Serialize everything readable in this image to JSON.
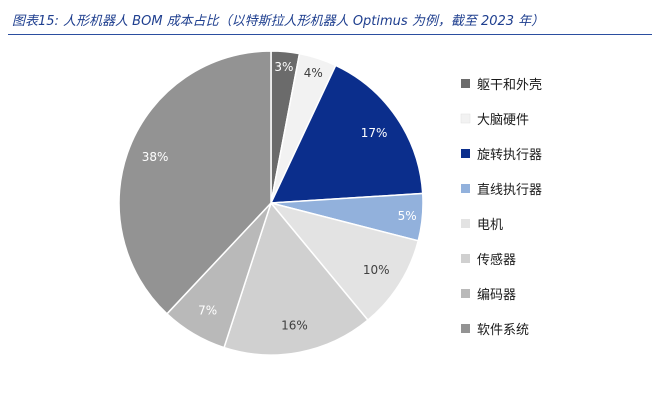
{
  "title": "图表15: 人形机器人 BOM 成本占比（以特斯拉人形机器人 Optimus 为例，截至 2023 年）",
  "chart_data": {
    "type": "pie",
    "title": "图表15: 人形机器人 BOM 成本占比（以特斯拉人形机器人 Optimus 为例，截至 2023 年）",
    "start_angle_deg": 0,
    "direction": "clockwise",
    "legend_position": "right",
    "slices": [
      {
        "name": "躯干和外壳",
        "value": 3,
        "label": "3%",
        "color": "#6b6b6b",
        "label_color": "#ffffff"
      },
      {
        "name": "大脑硬件",
        "value": 4,
        "label": "4%",
        "color": "#f2f2f2",
        "label_color": "#404040"
      },
      {
        "name": "旋转执行器",
        "value": 17,
        "label": "17%",
        "color": "#0b2e8c",
        "label_color": "#ffffff"
      },
      {
        "name": "直线执行器",
        "value": 5,
        "label": "5%",
        "color": "#92b1dc",
        "label_color": "#ffffff"
      },
      {
        "name": "电机",
        "value": 10,
        "label": "10%",
        "color": "#e3e3e3",
        "label_color": "#404040"
      },
      {
        "name": "传感器",
        "value": 16,
        "label": "16%",
        "color": "#d0d0d0",
        "label_color": "#404040"
      },
      {
        "name": "编码器",
        "value": 7,
        "label": "7%",
        "color": "#b9b9b9",
        "label_color": "#ffffff"
      },
      {
        "name": "软件系统",
        "value": 38,
        "label": "38%",
        "color": "#939393",
        "label_color": "#ffffff"
      }
    ]
  }
}
